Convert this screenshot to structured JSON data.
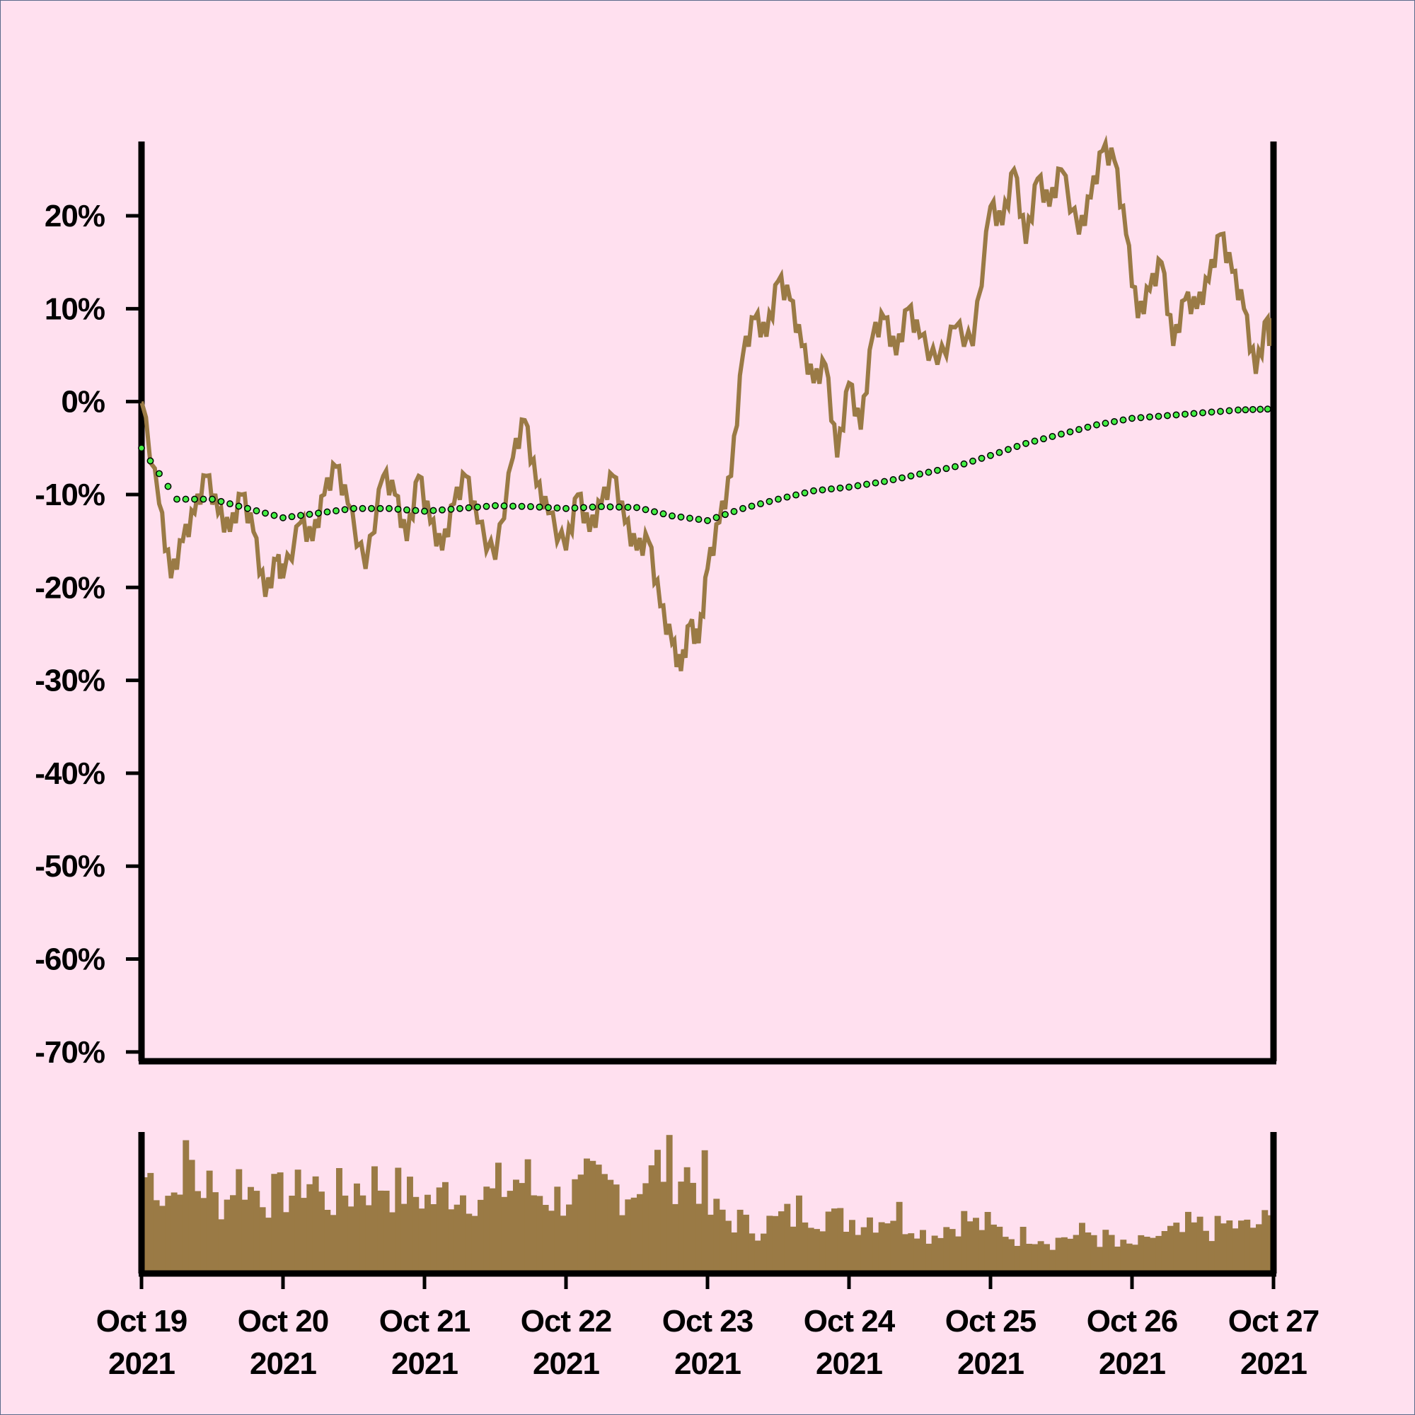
{
  "colors": {
    "background": "#ffe0ef",
    "price_line": "#9a7a45",
    "ma_fill": "#44ee44",
    "ma_stroke": "#000000",
    "volume": "#9a7a45",
    "axis": "#000000"
  },
  "chart_data": [
    {
      "type": "line",
      "title": "",
      "xlabel": "",
      "ylabel": "",
      "x_start": "2021-10-19",
      "x_end": "2021-10-27",
      "ylim": [
        -71,
        28
      ],
      "y_ticks": [
        20,
        10,
        0,
        -10,
        -20,
        -30,
        -40,
        -50,
        -60,
        -70
      ],
      "y_tick_labels": [
        "20%",
        "10%",
        "0%",
        "-10%",
        "-20%",
        "-30%",
        "-40%",
        "-50%",
        "-60%",
        "-70%"
      ],
      "x_ticks": [
        "2021-10-19",
        "2021-10-20",
        "2021-10-21",
        "2021-10-22",
        "2021-10-23",
        "2021-10-24",
        "2021-10-25",
        "2021-10-26",
        "2021-10-27"
      ],
      "x_tick_labels": [
        [
          "Oct 19",
          "2021"
        ],
        [
          "Oct 20",
          "2021"
        ],
        [
          "Oct 21",
          "2021"
        ],
        [
          "Oct 22",
          "2021"
        ],
        [
          "Oct 23",
          "2021"
        ],
        [
          "Oct 24",
          "2021"
        ],
        [
          "Oct 25",
          "2021"
        ],
        [
          "Oct 26",
          "2021"
        ],
        [
          "Oct 27",
          "2021"
        ]
      ],
      "series": [
        {
          "style": "line",
          "points": [
            [
              "2021-10-19 00:00",
              0
            ],
            [
              "2021-10-19 03:00",
              -11
            ],
            [
              "2021-10-19 05:00",
              -19
            ],
            [
              "2021-10-19 07:00",
              -15
            ],
            [
              "2021-10-19 09:00",
              -12
            ],
            [
              "2021-10-19 11:00",
              -8
            ],
            [
              "2021-10-19 13:00",
              -12
            ],
            [
              "2021-10-19 15:00",
              -14
            ],
            [
              "2021-10-19 17:00",
              -10
            ],
            [
              "2021-10-19 19:00",
              -14
            ],
            [
              "2021-10-19 21:00",
              -21
            ],
            [
              "2021-10-19 23:00",
              -17
            ],
            [
              "2021-10-20 00:00",
              -19
            ],
            [
              "2021-10-20 03:00",
              -13
            ],
            [
              "2021-10-20 05:00",
              -15
            ],
            [
              "2021-10-20 07:00",
              -10
            ],
            [
              "2021-10-20 09:00",
              -7
            ],
            [
              "2021-10-20 11:00",
              -11
            ],
            [
              "2021-10-20 14:00",
              -18
            ],
            [
              "2021-10-20 17:00",
              -8
            ],
            [
              "2021-10-20 19:00",
              -10
            ],
            [
              "2021-10-20 21:00",
              -15
            ],
            [
              "2021-10-20 23:00",
              -8
            ],
            [
              "2021-10-21 01:00",
              -13
            ],
            [
              "2021-10-21 03:00",
              -16
            ],
            [
              "2021-10-21 05:00",
              -11
            ],
            [
              "2021-10-21 07:00",
              -8
            ],
            [
              "2021-10-21 09:00",
              -13
            ],
            [
              "2021-10-21 12:00",
              -17
            ],
            [
              "2021-10-21 15:00",
              -6
            ],
            [
              "2021-10-21 17:00",
              -2
            ],
            [
              "2021-10-21 19:00",
              -9
            ],
            [
              "2021-10-21 21:00",
              -12
            ],
            [
              "2021-10-22 00:00",
              -16
            ],
            [
              "2021-10-22 02:00",
              -10
            ],
            [
              "2021-10-22 04:00",
              -14
            ],
            [
              "2021-10-22 06:00",
              -11
            ],
            [
              "2021-10-22 08:00",
              -8
            ],
            [
              "2021-10-22 10:00",
              -13
            ],
            [
              "2021-10-22 12:00",
              -16
            ],
            [
              "2021-10-22 14:00",
              -15
            ],
            [
              "2021-10-22 16:00",
              -22
            ],
            [
              "2021-10-22 18:00",
              -26
            ],
            [
              "2021-10-22 19:30",
              -29
            ],
            [
              "2021-10-22 21:00",
              -24
            ],
            [
              "2021-10-22 22:30",
              -26
            ],
            [
              "2021-10-23 00:00",
              -18
            ],
            [
              "2021-10-23 02:00",
              -13
            ],
            [
              "2021-10-23 04:00",
              -8
            ],
            [
              "2021-10-23 06:00",
              5
            ],
            [
              "2021-10-23 08:00",
              9
            ],
            [
              "2021-10-23 10:00",
              7
            ],
            [
              "2021-10-23 12:00",
              13
            ],
            [
              "2021-10-23 14:00",
              11
            ],
            [
              "2021-10-23 16:00",
              6
            ],
            [
              "2021-10-23 18:00",
              2
            ],
            [
              "2021-10-23 20:00",
              4
            ],
            [
              "2021-10-23 22:00",
              -6
            ],
            [
              "2021-10-24 00:00",
              2
            ],
            [
              "2021-10-24 02:00",
              -3
            ],
            [
              "2021-10-24 04:00",
              7
            ],
            [
              "2021-10-24 06:00",
              9
            ],
            [
              "2021-10-24 08:00",
              5
            ],
            [
              "2021-10-24 10:00",
              10
            ],
            [
              "2021-10-24 12:00",
              7
            ],
            [
              "2021-10-24 15:00",
              4
            ],
            [
              "2021-10-24 18:00",
              8
            ],
            [
              "2021-10-24 21:00",
              6
            ],
            [
              "2021-10-25 00:00",
              21
            ],
            [
              "2021-10-25 02:00",
              19
            ],
            [
              "2021-10-25 04:00",
              25
            ],
            [
              "2021-10-25 06:00",
              17
            ],
            [
              "2021-10-25 08:00",
              24
            ],
            [
              "2021-10-25 10:00",
              21
            ],
            [
              "2021-10-25 12:00",
              25
            ],
            [
              "2021-10-25 15:00",
              18
            ],
            [
              "2021-10-25 17:00",
              22
            ],
            [
              "2021-10-25 19:00",
              27
            ],
            [
              "2021-10-25 21:00",
              26
            ],
            [
              "2021-10-25 23:00",
              18
            ],
            [
              "2021-10-26 01:00",
              9
            ],
            [
              "2021-10-26 03:00",
              12
            ],
            [
              "2021-10-26 05:00",
              15
            ],
            [
              "2021-10-26 07:00",
              6
            ],
            [
              "2021-10-26 09:00",
              11
            ],
            [
              "2021-10-26 11:00",
              10
            ],
            [
              "2021-10-26 13:00",
              13
            ],
            [
              "2021-10-26 15:00",
              18
            ],
            [
              "2021-10-26 17:00",
              14
            ],
            [
              "2021-10-26 19:00",
              10
            ],
            [
              "2021-10-26 21:00",
              3
            ],
            [
              "2021-10-26 23:00",
              9
            ]
          ]
        },
        {
          "style": "dots",
          "points": [
            [
              "2021-10-19 00:00",
              -5
            ],
            [
              "2021-10-19 06:00",
              -10.5
            ],
            [
              "2021-10-19 12:00",
              -10.5
            ],
            [
              "2021-10-19 18:00",
              -11.5
            ],
            [
              "2021-10-20 00:00",
              -12.5
            ],
            [
              "2021-10-20 06:00",
              -12
            ],
            [
              "2021-10-20 12:00",
              -11.5
            ],
            [
              "2021-10-20 18:00",
              -11.5
            ],
            [
              "2021-10-21 00:00",
              -11.8
            ],
            [
              "2021-10-21 06:00",
              -11.5
            ],
            [
              "2021-10-21 12:00",
              -11.2
            ],
            [
              "2021-10-21 18:00",
              -11.3
            ],
            [
              "2021-10-22 00:00",
              -11.5
            ],
            [
              "2021-10-22 06:00",
              -11.3
            ],
            [
              "2021-10-22 12:00",
              -11.4
            ],
            [
              "2021-10-22 18:00",
              -12.3
            ],
            [
              "2021-10-23 00:00",
              -12.8
            ],
            [
              "2021-10-23 06:00",
              -11.5
            ],
            [
              "2021-10-23 12:00",
              -10.5
            ],
            [
              "2021-10-23 18:00",
              -9.6
            ],
            [
              "2021-10-24 00:00",
              -9.2
            ],
            [
              "2021-10-24 06:00",
              -8.6
            ],
            [
              "2021-10-24 12:00",
              -7.8
            ],
            [
              "2021-10-24 18:00",
              -7.0
            ],
            [
              "2021-10-25 00:00",
              -5.8
            ],
            [
              "2021-10-25 06:00",
              -4.5
            ],
            [
              "2021-10-25 12:00",
              -3.5
            ],
            [
              "2021-10-25 18:00",
              -2.5
            ],
            [
              "2021-10-26 00:00",
              -1.8
            ],
            [
              "2021-10-26 06:00",
              -1.5
            ],
            [
              "2021-10-26 12:00",
              -1.2
            ],
            [
              "2021-10-26 18:00",
              -0.9
            ],
            [
              "2021-10-26 23:00",
              -0.8
            ]
          ]
        }
      ]
    },
    {
      "type": "bar",
      "title": "",
      "xlabel": "",
      "ylabel": "",
      "x_start": "2021-10-19",
      "x_end": "2021-10-27",
      "bars_per_day": 24,
      "ylim": [
        0,
        1
      ],
      "volume_level_by_day": [
        [
          0.72,
          0.6,
          0.8,
          0.65,
          0.55,
          0.7,
          0.62,
          0.58
        ],
        [
          0.6,
          0.7,
          0.55,
          0.6,
          0.65,
          0.68,
          0.62,
          0.58
        ],
        [
          0.55,
          0.62,
          0.6,
          0.58,
          0.64,
          0.7,
          0.6,
          0.56
        ],
        [
          0.6,
          0.66,
          0.64,
          0.62,
          0.72,
          0.8,
          0.75,
          0.7
        ],
        [
          0.45,
          0.4,
          0.35,
          0.38,
          0.42,
          0.48,
          0.45,
          0.4
        ],
        [
          0.4,
          0.42,
          0.45,
          0.38,
          0.3,
          0.35,
          0.4,
          0.36
        ],
        [
          0.32,
          0.28,
          0.3,
          0.25,
          0.28,
          0.3,
          0.26,
          0.2
        ],
        [
          0.22,
          0.28,
          0.3,
          0.35,
          0.33,
          0.36,
          0.34,
          0.38
        ]
      ]
    }
  ]
}
